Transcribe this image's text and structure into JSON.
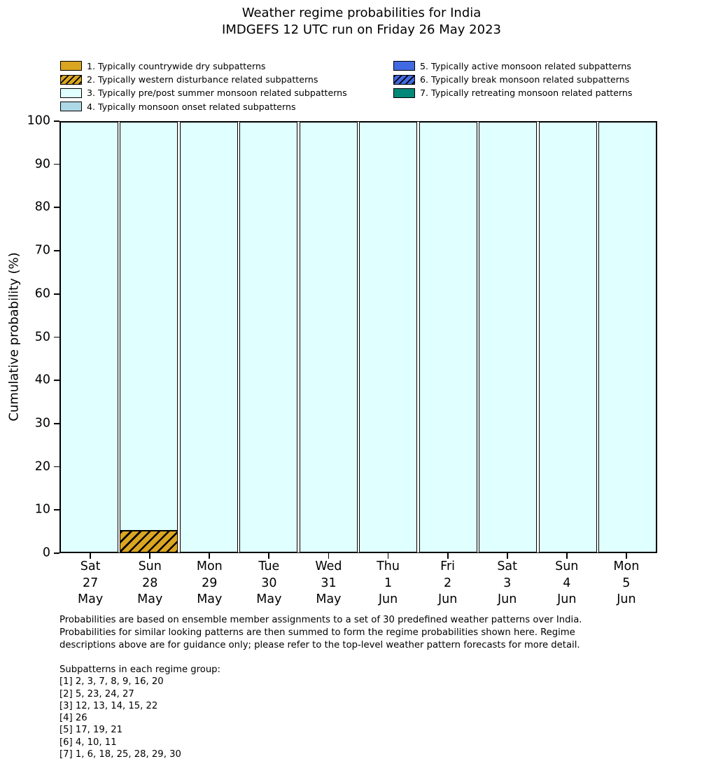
{
  "title": {
    "line1": "Weather regime probabilities for India",
    "line2": "IMDGEFS 12 UTC run on Friday 26 May 2023"
  },
  "legend": {
    "items": [
      {
        "regime": 1,
        "label": "1. Typically countrywide dry subpatterns",
        "color": "#DAA520",
        "hatch": false,
        "column": "left"
      },
      {
        "regime": 2,
        "label": "2. Typically western disturbance related subpatterns",
        "color": "#DAA520",
        "hatch": true,
        "column": "left"
      },
      {
        "regime": 3,
        "label": "3. Typically pre/post summer monsoon related subpatterns",
        "color": "#E0FFFF",
        "hatch": false,
        "column": "left"
      },
      {
        "regime": 4,
        "label": "4. Typically monsoon onset related subpatterns",
        "color": "#ADD8E6",
        "hatch": false,
        "column": "left"
      },
      {
        "regime": 5,
        "label": "5. Typically active monsoon related subpatterns",
        "color": "#4169E1",
        "hatch": false,
        "column": "right"
      },
      {
        "regime": 6,
        "label": "6. Typically break monsoon related subpatterns",
        "color": "#4169E1",
        "hatch": true,
        "column": "right"
      },
      {
        "regime": 7,
        "label": "7. Typically retreating monsoon related patterns",
        "color": "#008878",
        "hatch": false,
        "column": "right"
      }
    ]
  },
  "chart_data": {
    "type": "bar",
    "stacked": true,
    "title": "Weather regime probabilities for India",
    "subtitle": "IMDGEFS 12 UTC run on Friday 26 May 2023",
    "xlabel": "",
    "ylabel": "Cumulative probability (%)",
    "ylim": [
      0,
      100
    ],
    "yticks": [
      0,
      10,
      20,
      30,
      40,
      50,
      60,
      70,
      80,
      90,
      100
    ],
    "grid": false,
    "legend_position": "top",
    "bar_edge_color": "#000000",
    "categories": [
      {
        "day": "Sat",
        "date": "27",
        "month": "May"
      },
      {
        "day": "Sun",
        "date": "28",
        "month": "May"
      },
      {
        "day": "Mon",
        "date": "29",
        "month": "May"
      },
      {
        "day": "Tue",
        "date": "30",
        "month": "May"
      },
      {
        "day": "Wed",
        "date": "31",
        "month": "May"
      },
      {
        "day": "Thu",
        "date": "1",
        "month": "Jun"
      },
      {
        "day": "Fri",
        "date": "2",
        "month": "Jun"
      },
      {
        "day": "Sat",
        "date": "3",
        "month": "Jun"
      },
      {
        "day": "Sun",
        "date": "4",
        "month": "Jun"
      },
      {
        "day": "Mon",
        "date": "5",
        "month": "Jun"
      }
    ],
    "series": [
      {
        "regime": 1,
        "name": "1. Typically countrywide dry subpatterns",
        "color": "#DAA520",
        "hatch": false,
        "values": [
          0,
          0,
          0,
          0,
          0,
          0,
          0,
          0,
          0,
          0
        ]
      },
      {
        "regime": 2,
        "name": "2. Typically western disturbance related subpatterns",
        "color": "#DAA520",
        "hatch": true,
        "values": [
          0,
          5,
          0,
          0,
          0,
          0,
          0,
          0,
          0,
          0
        ]
      },
      {
        "regime": 3,
        "name": "3. Typically pre/post summer monsoon related subpatterns",
        "color": "#E0FFFF",
        "hatch": false,
        "values": [
          100,
          95,
          100,
          100,
          100,
          100,
          100,
          100,
          100,
          100
        ]
      },
      {
        "regime": 4,
        "name": "4. Typically monsoon onset related subpatterns",
        "color": "#ADD8E6",
        "hatch": false,
        "values": [
          0,
          0,
          0,
          0,
          0,
          0,
          0,
          0,
          0,
          0
        ]
      },
      {
        "regime": 5,
        "name": "5. Typically active monsoon related subpatterns",
        "color": "#4169E1",
        "hatch": false,
        "values": [
          0,
          0,
          0,
          0,
          0,
          0,
          0,
          0,
          0,
          0
        ]
      },
      {
        "regime": 6,
        "name": "6. Typically break monsoon related subpatterns",
        "color": "#4169E1",
        "hatch": true,
        "values": [
          0,
          0,
          0,
          0,
          0,
          0,
          0,
          0,
          0,
          0
        ]
      },
      {
        "regime": 7,
        "name": "7. Typically retreating monsoon related patterns",
        "color": "#008878",
        "hatch": false,
        "values": [
          0,
          0,
          0,
          0,
          0,
          0,
          0,
          0,
          0,
          0
        ]
      }
    ]
  },
  "footer": {
    "lines": [
      "Probabilities are based on ensemble member assignments to a set of 30 predefined weather patterns over India.",
      "Probabilities for similar looking patterns are then summed to form the regime probabilities shown here. Regime",
      "descriptions above are for guidance only; please refer to the top-level weather pattern forecasts for more detail."
    ]
  },
  "subpatterns": {
    "lines": [
      "Subpatterns in each regime group:",
      "[1] 2, 3, 7, 8, 9, 16, 20",
      "[2] 5, 23, 24, 27",
      "[3] 12, 13, 14, 15, 22",
      "[4] 26",
      "[5] 17, 19, 21",
      "[6] 4, 10, 11",
      "[7] 1, 6, 18, 25, 28, 29, 30"
    ]
  }
}
